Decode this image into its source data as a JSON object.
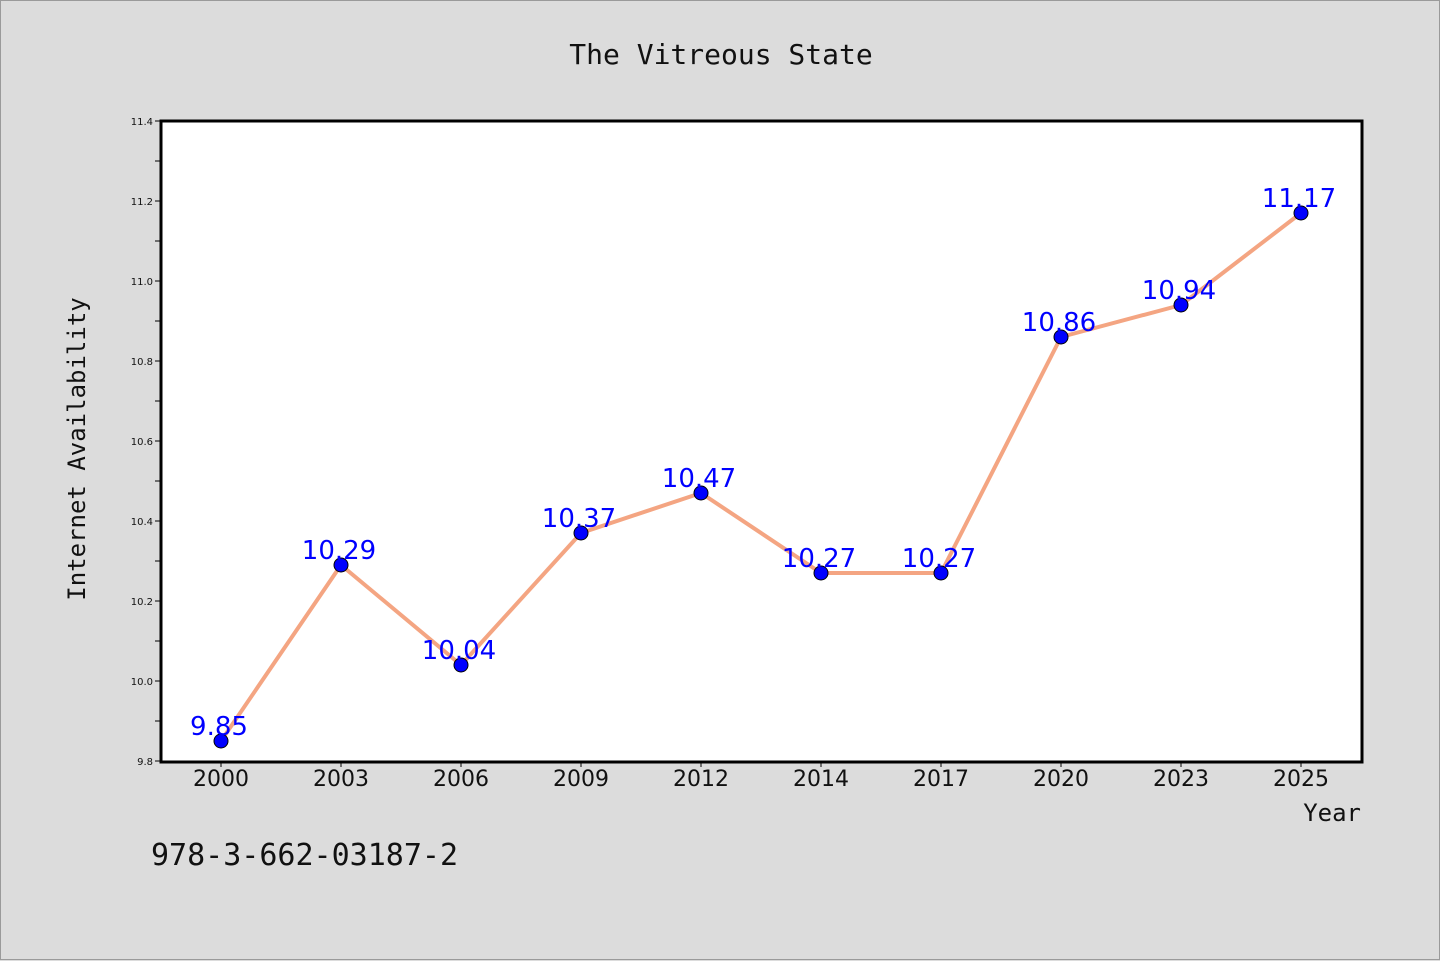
{
  "chart_data": {
    "type": "line",
    "title": "The Vitreous State",
    "xlabel": "Year",
    "ylabel": "Internet Availability",
    "categories": [
      "2000",
      "2003",
      "2006",
      "2009",
      "2012",
      "2014",
      "2017",
      "2020",
      "2023",
      "2025"
    ],
    "series": [
      {
        "values": [
          9.85,
          10.29,
          10.04,
          10.37,
          10.47,
          10.27,
          10.27,
          10.86,
          10.94,
          11.17
        ],
        "labels": [
          "9.85",
          "10.29",
          "10.04",
          "10.37",
          "10.47",
          "10.27",
          "10.27",
          "10.86",
          "10.94",
          "11.17"
        ]
      }
    ],
    "ylim": [
      9.8,
      11.4
    ],
    "yticks": [
      "9.8",
      "10.0",
      "10.2",
      "10.4",
      "10.6",
      "10.8",
      "11.0",
      "11.2",
      "11.4"
    ],
    "grid": false,
    "legend": "none",
    "colors": {
      "line": "#f4a582",
      "marker": "#0000ff",
      "data_label": "#0000ff",
      "background": "#dcdcdc",
      "plot_background": "#ffffff"
    }
  },
  "footnote": "978-3-662-03187-2"
}
